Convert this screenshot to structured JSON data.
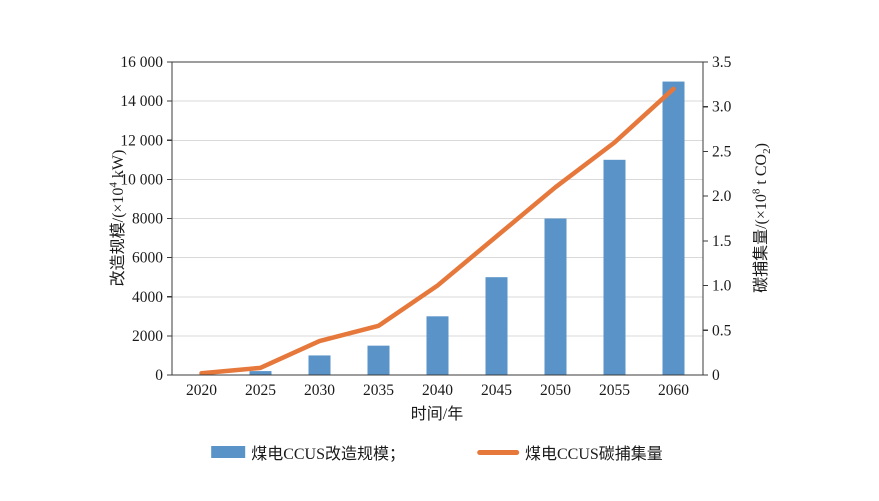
{
  "chart_data": {
    "type": "bar",
    "title": "",
    "categories": [
      "2020",
      "2025",
      "2030",
      "2035",
      "2040",
      "2045",
      "2050",
      "2055",
      "2060"
    ],
    "series": [
      {
        "name": "煤电CCUS改造规模",
        "chart_type": "bar",
        "y_axis": "left",
        "color": "#5A93C8",
        "values": [
          0,
          200,
          1000,
          1500,
          3000,
          5000,
          8000,
          11000,
          15000
        ]
      },
      {
        "name": "煤电CCUS碳捕集量",
        "chart_type": "line",
        "y_axis": "right",
        "color": "#E6783C",
        "values": [
          0.02,
          0.08,
          0.38,
          0.55,
          1.0,
          1.55,
          2.1,
          2.6,
          3.2
        ]
      }
    ],
    "xlabel": "时间/年",
    "ylabel_left": "改造规模/(×10⁴ kW)",
    "ylabel_right": "碳捕集量/(×10⁸ t CO₂)",
    "ylim_left": [
      0,
      16000
    ],
    "ytick_step_left": 2000,
    "ytick_labels_left": [
      "0",
      "2000",
      "4000",
      "6000",
      "8000",
      "10 000",
      "12 000",
      "14 000",
      "16 000"
    ],
    "ylim_right": [
      0,
      3.5
    ],
    "ytick_step_right": 0.5,
    "ytick_labels_right": [
      "0",
      "0.5",
      "1.0",
      "1.5",
      "2.0",
      "2.5",
      "3.0",
      "3.5"
    ],
    "grid": "horizontal",
    "legend_position": "bottom"
  },
  "axes": {
    "left_title": {
      "pre": "改造规模/(×10",
      "sup": "4",
      "post": " kW)"
    },
    "right_title": {
      "pre": "碳捕集量/(×10",
      "sup": "8",
      "mid": " t CO",
      "sub": "2",
      "post": ")"
    }
  },
  "legend": {
    "items": [
      {
        "label": "煤电CCUS改造规模；"
      },
      {
        "label": "煤电CCUS碳捕集量"
      }
    ]
  },
  "colors": {
    "bar": "#5A93C8",
    "line": "#E6783C",
    "grid": "#D9D9D9",
    "axis": "#3B3B3B",
    "text": "#1A1A1A"
  }
}
